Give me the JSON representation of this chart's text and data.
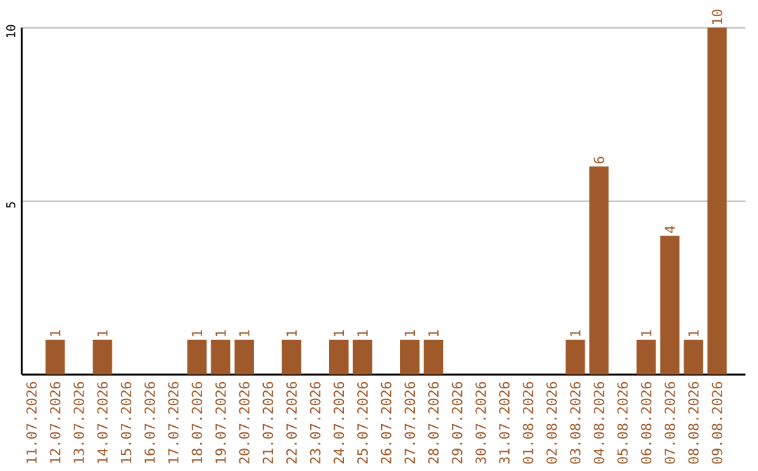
{
  "chart_data": {
    "type": "bar",
    "categories": [
      "11.07.2026",
      "12.07.2026",
      "13.07.2026",
      "14.07.2026",
      "15.07.2026",
      "16.07.2026",
      "17.07.2026",
      "18.07.2026",
      "19.07.2026",
      "20.07.2026",
      "21.07.2026",
      "22.07.2026",
      "23.07.2026",
      "24.07.2026",
      "25.07.2026",
      "26.07.2026",
      "27.07.2026",
      "28.07.2026",
      "29.07.2026",
      "30.07.2026",
      "31.07.2026",
      "01.08.2026",
      "02.08.2026",
      "03.08.2026",
      "04.08.2026",
      "05.08.2026",
      "06.08.2026",
      "07.08.2026",
      "08.08.2026",
      "09.08.2026"
    ],
    "values": [
      0,
      1,
      0,
      1,
      0,
      0,
      0,
      1,
      1,
      1,
      0,
      1,
      0,
      1,
      1,
      0,
      1,
      1,
      0,
      0,
      0,
      0,
      0,
      1,
      6,
      0,
      1,
      4,
      1,
      10
    ],
    "value_labels": [
      null,
      "1",
      null,
      "1",
      null,
      null,
      null,
      "1",
      "1",
      "1",
      null,
      "1",
      null,
      "1",
      "1",
      null,
      "1",
      "1",
      null,
      null,
      null,
      null,
      null,
      "1",
      "6",
      null,
      "1",
      "4",
      "1",
      "10"
    ],
    "color": "#a0592a",
    "ylim": [
      0,
      10
    ],
    "yticks": [
      5,
      10
    ],
    "grid": "y"
  }
}
